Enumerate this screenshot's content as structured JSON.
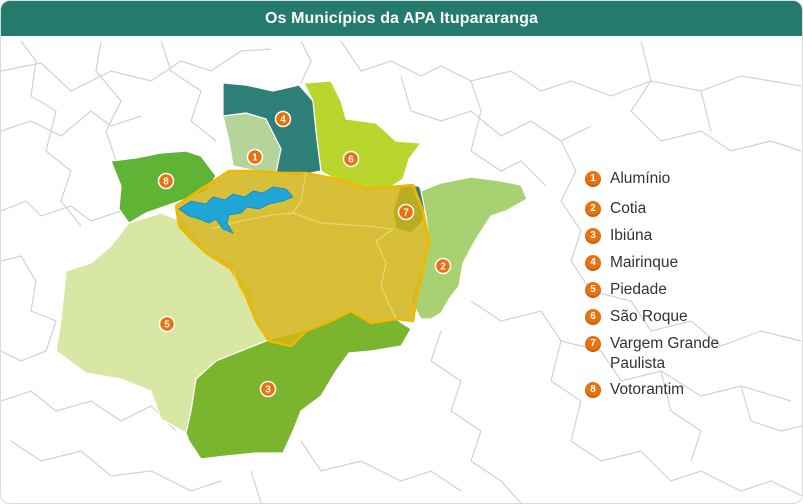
{
  "title": "Os Municípios da APA Itupararanga",
  "colors": {
    "header": "#237a6d",
    "marker": "#e9710e",
    "reservoir": "#1fa5d6",
    "apa_fill": "#d1b419",
    "apa_border": "#f0b800"
  },
  "municipalities": [
    {
      "num": "1",
      "name": "Alumínio",
      "color": "#b4d499"
    },
    {
      "num": "2",
      "name": "Cotia",
      "color": "#a8d171"
    },
    {
      "num": "3",
      "name": "Ibiúna",
      "color": "#7bb52e"
    },
    {
      "num": "4",
      "name": "Mairinque",
      "color": "#2e7f77"
    },
    {
      "num": "5",
      "name": "Piedade",
      "color": "#d8e8a4"
    },
    {
      "num": "6",
      "name": "São Roque",
      "color": "#b9d62e"
    },
    {
      "num": "7",
      "name": "Vargem Grande Paulista",
      "color": "#3b7d5e"
    },
    {
      "num": "8",
      "name": "Votorantim",
      "color": "#5fb435"
    }
  ]
}
